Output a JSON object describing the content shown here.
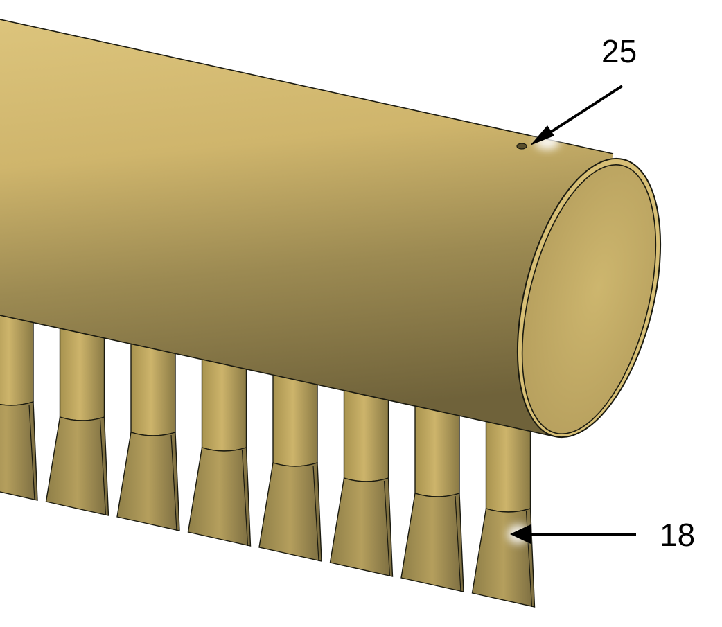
{
  "figure": {
    "description_type": "cad-render",
    "callouts": [
      {
        "id": "hole",
        "label": "25"
      },
      {
        "id": "nozzle",
        "label": "18"
      }
    ],
    "colors": {
      "body_light": "#dcc47c",
      "body_mid": "#bfa661",
      "body_dark": "#7a6c40",
      "cap_face": "#c9b26a",
      "edge": "#1a1a10",
      "arrow": "#000000",
      "background": "#ffffff"
    }
  }
}
